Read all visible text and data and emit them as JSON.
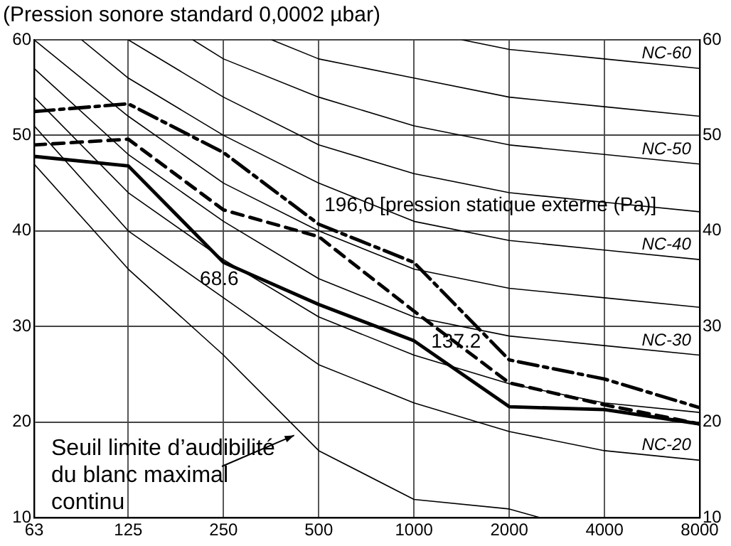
{
  "chart_data": {
    "type": "line",
    "title": "(Pression sonore standard 0,0002 µbar)",
    "x": [
      63,
      125,
      250,
      500,
      1000,
      2000,
      4000,
      8000
    ],
    "series": [
      {
        "name": "68.6",
        "color": "#000000",
        "line_style": "solid",
        "values": [
          47.8,
          46.8,
          36.7,
          32.3,
          28.5,
          21.6,
          21.3,
          19.8
        ]
      },
      {
        "name": "137.2",
        "color": "#000000",
        "line_style": "dashed",
        "values": [
          49,
          49.6,
          42.2,
          39.4,
          31.6,
          24.1,
          21.8,
          19.8
        ]
      },
      {
        "name": "196,0 [pression statique externe (Pa)]",
        "color": "#000000",
        "line_style": "dashdot",
        "values": [
          52.5,
          53.3,
          48.2,
          40.7,
          36.7,
          26.5,
          24.5,
          21.5
        ]
      },
      {
        "name": "NC-60",
        "color": "#000000",
        "x": [
          1418,
          2000,
          4000,
          8000
        ],
        "values": [
          60,
          59,
          58,
          57
        ]
      },
      {
        "color": "#000000",
        "x": [
          355,
          500,
          1000,
          2000,
          4000,
          8000
        ],
        "values": [
          60,
          58,
          56,
          54,
          53,
          52
        ]
      },
      {
        "name": "NC-50",
        "color": "#000000",
        "x": [
          200,
          250,
          500,
          1000,
          2000,
          4000,
          8000
        ],
        "values": [
          60,
          58,
          54,
          51,
          49,
          48,
          47
        ]
      },
      {
        "color": "#000000",
        "x": [
          125,
          250,
          500,
          1000,
          2000,
          4000,
          8000
        ],
        "values": [
          60,
          54,
          49,
          46,
          44,
          43,
          42
        ]
      },
      {
        "name": "NC-40",
        "color": "#000000",
        "x": [
          89,
          125,
          250,
          500,
          1000,
          2000,
          4000,
          8000
        ],
        "values": [
          60,
          56,
          50,
          45,
          41,
          39,
          38,
          37
        ]
      },
      {
        "color": "#000000",
        "x": [
          63,
          125,
          250,
          500,
          1000,
          2000,
          4000,
          8000
        ],
        "values": [
          60,
          52,
          45,
          40,
          36,
          34,
          33,
          32
        ]
      },
      {
        "name": "NC-30",
        "color": "#000000",
        "x": [
          63,
          125,
          250,
          500,
          1000,
          2000,
          4000,
          8000
        ],
        "values": [
          57,
          48,
          41,
          35,
          31,
          29,
          28,
          27
        ]
      },
      {
        "color": "#000000",
        "x": [
          63,
          125,
          250,
          500,
          1000,
          2000,
          4000,
          8000
        ],
        "values": [
          54,
          44,
          37,
          31,
          27,
          24,
          22,
          21
        ]
      },
      {
        "name": "NC-20",
        "color": "#000000",
        "x": [
          63,
          125,
          250,
          500,
          1000,
          2000,
          4000,
          8000
        ],
        "values": [
          51,
          40,
          33,
          26,
          22,
          19,
          17,
          16
        ]
      },
      {
        "color": "#000000",
        "x": [
          63,
          125,
          250,
          500,
          1000,
          2000,
          2500
        ],
        "values": [
          47,
          36,
          27,
          17,
          11.9,
          10.9,
          10
        ]
      }
    ],
    "annotations": [
      {
        "text": "Seuil limite d’audibilité du blanc maximal continu",
        "x": 418,
        "y": 18.6
      }
    ],
    "log": "x",
    "xlim": [
      63,
      8000
    ],
    "xticks": [
      63,
      125,
      250,
      500,
      1000,
      2000,
      4000,
      8000
    ],
    "ylim": [
      10,
      60
    ],
    "yticks": [
      10,
      20,
      30,
      40,
      50,
      60
    ],
    "y2lim": [
      10,
      60
    ],
    "y2ticks": [
      10,
      20,
      30,
      40,
      50,
      60
    ],
    "grid": true
  }
}
